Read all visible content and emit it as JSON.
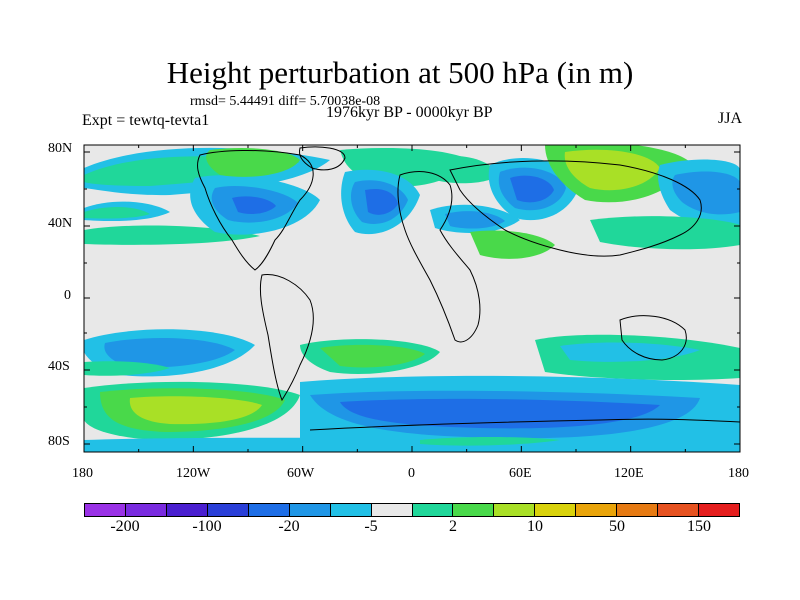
{
  "title": "Height perturbation at 500 hPa (in m)",
  "stats": "rmsd= 5.44491 diff= 5.70038e-08",
  "expt": "Expt = tewtq-tevta1",
  "period": "1976kyr BP - 0000kyr BP",
  "season": "JJA",
  "lat_labels": [
    "80N",
    "40N",
    "0",
    "40S",
    "80S"
  ],
  "lon_labels": [
    "180",
    "120W",
    "60W",
    "0",
    "60E",
    "120E",
    "180"
  ],
  "colorbar": {
    "colors": [
      "#9a32e6",
      "#7a2be0",
      "#4a1fd0",
      "#2a3fd8",
      "#1e6ee6",
      "#1f96e6",
      "#22c0e6",
      "#e8e8e8",
      "#20d79a",
      "#49d94a",
      "#a9e026",
      "#d9d20c",
      "#e9a40a",
      "#e67a12",
      "#e65220",
      "#e51e1e"
    ],
    "labels": [
      "-200",
      "-100",
      "-20",
      "-5",
      "2",
      "10",
      "50",
      "150"
    ]
  },
  "palette": {
    "neutral": "#e8e8e8",
    "cyan": "#22c0e6",
    "lightblue": "#1f96e6",
    "blue": "#1e6ee6",
    "teal": "#20d79a",
    "green": "#49d94a",
    "yellowgreen": "#a9e026"
  }
}
